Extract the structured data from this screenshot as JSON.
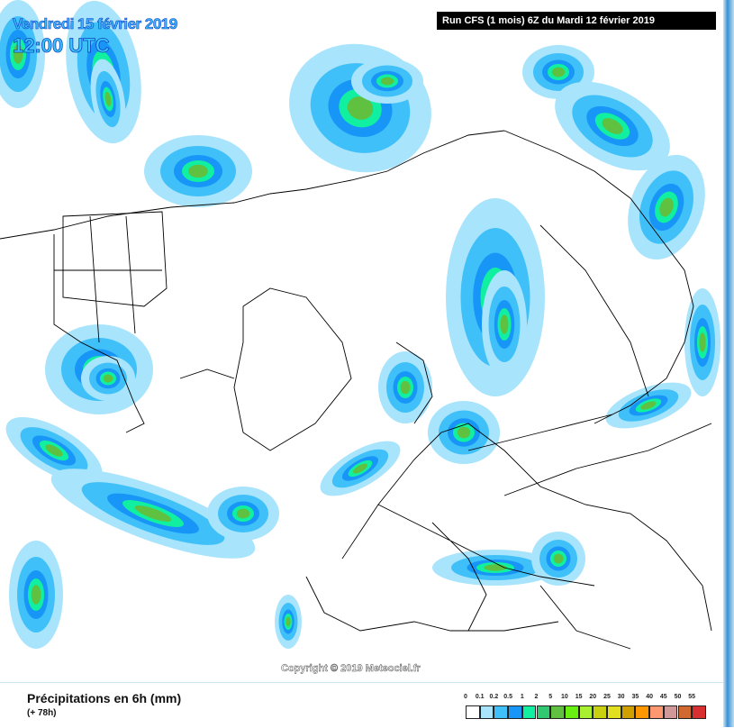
{
  "header": {
    "date": "Vendredi 15 février 2019",
    "time": "12:00 UTC",
    "run": "Run CFS (1 mois) 6Z du Mardi 12 février 2019"
  },
  "copyright": "Copyright © 2019 Meteociel.fr",
  "footer": {
    "title": "Précipitations en 6h (mm)",
    "subtitle": "(+ 78h)"
  },
  "legend": {
    "labels": [
      "0",
      "0.1",
      "0.2",
      "0.5",
      "1",
      "2",
      "5",
      "10",
      "15",
      "20",
      "25",
      "30",
      "35",
      "40",
      "45",
      "50",
      "55"
    ],
    "colors": [
      "#ffffff",
      "#a8e4fc",
      "#40c0f8",
      "#1896f8",
      "#10f0a0",
      "#30c870",
      "#60c040",
      "#68f010",
      "#a8f030",
      "#c8d010",
      "#e0e020",
      "#d0a000",
      "#ff9800",
      "#ff9870",
      "#d09898",
      "#d06830",
      "#d83030"
    ]
  }
}
